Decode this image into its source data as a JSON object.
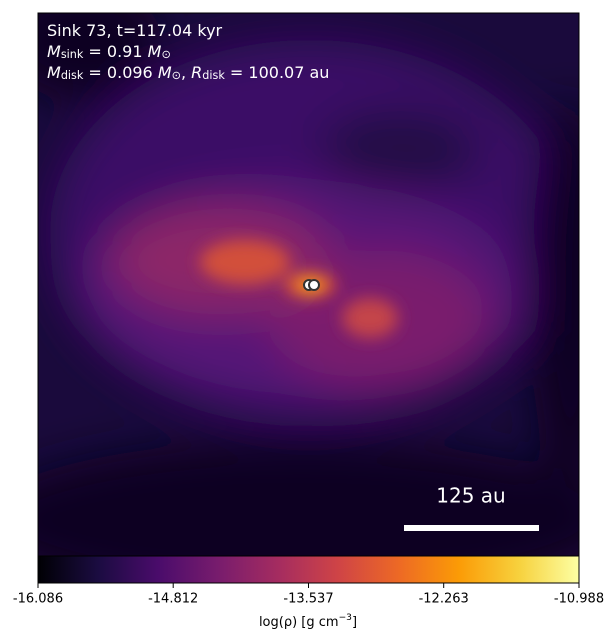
{
  "chart_data": {
    "type": "image",
    "annotations": [
      [
        {
          "text": "Sink 73, t=117.04 kyr"
        }
      ],
      [
        {
          "italic": "M"
        },
        {
          "sub": "sink"
        },
        {
          "text": " = 0.91 "
        },
        {
          "italic": "M"
        },
        {
          "sub": "⊙"
        }
      ],
      [
        {
          "italic": "M"
        },
        {
          "sub": "disk"
        },
        {
          "text": " = 0.096 "
        },
        {
          "italic": "M"
        },
        {
          "sub": "⊙"
        },
        {
          "text": ", "
        },
        {
          "italic": "R"
        },
        {
          "sub": "disk"
        },
        {
          "text": " = 100.07 au"
        }
      ]
    ],
    "scale_bar": "125 au",
    "colorbar": {
      "clim": [
        -16.086,
        -10.988
      ],
      "ticks": [
        -16.086,
        -14.812,
        -13.537,
        -12.263,
        -10.988
      ],
      "label": [
        {
          "text": "log(ρ) [g cm"
        },
        {
          "sup": "−3"
        },
        {
          "text": "]"
        }
      ],
      "colors": [
        "#000004",
        "#1b0c41",
        "#4a0c6b",
        "#781c6d",
        "#a52c60",
        "#cf4446",
        "#ed6925",
        "#fb9b06",
        "#f7d13d",
        "#fcffa4"
      ]
    }
  }
}
